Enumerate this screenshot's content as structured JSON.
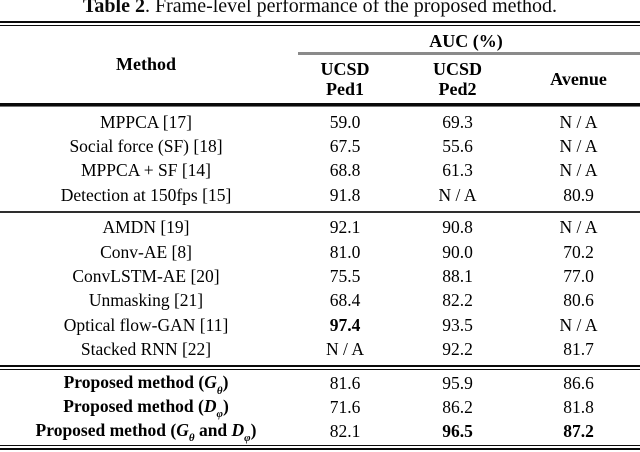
{
  "title": {
    "bold_part": "Table 2",
    "rest": ". Frame-level performance of the proposed method."
  },
  "table": {
    "method_header": "Method",
    "auc_header": "AUC (%)",
    "columns": [
      {
        "line1": "UCSD",
        "line2": "Ped1"
      },
      {
        "line1": "UCSD",
        "line2": "Ped2"
      },
      {
        "line1": "Avenue",
        "line2": ""
      }
    ],
    "groups": [
      {
        "rows": [
          {
            "bold": false,
            "method": [
              {
                "t": "MPPCA [17]"
              }
            ],
            "values": [
              "59.0",
              "69.3",
              "N / A"
            ],
            "bold_values": [
              false,
              false,
              false
            ]
          },
          {
            "bold": false,
            "method": [
              {
                "t": "Social force (SF) [18]"
              }
            ],
            "values": [
              "67.5",
              "55.6",
              "N / A"
            ],
            "bold_values": [
              false,
              false,
              false
            ]
          },
          {
            "bold": false,
            "method": [
              {
                "t": "MPPCA + SF [14]"
              }
            ],
            "values": [
              "68.8",
              "61.3",
              "N / A"
            ],
            "bold_values": [
              false,
              false,
              false
            ]
          },
          {
            "bold": false,
            "method": [
              {
                "t": "Detection at 150fps [15]"
              }
            ],
            "values": [
              "91.8",
              "N / A",
              "80.9"
            ],
            "bold_values": [
              false,
              false,
              false
            ]
          }
        ]
      },
      {
        "rows": [
          {
            "bold": false,
            "method": [
              {
                "t": "AMDN [19]"
              }
            ],
            "values": [
              "92.1",
              "90.8",
              "N / A"
            ],
            "bold_values": [
              false,
              false,
              false
            ]
          },
          {
            "bold": false,
            "method": [
              {
                "t": "Conv-AE [8]"
              }
            ],
            "values": [
              "81.0",
              "90.0",
              "70.2"
            ],
            "bold_values": [
              false,
              false,
              false
            ]
          },
          {
            "bold": false,
            "method": [
              {
                "t": "ConvLSTM-AE [20]"
              }
            ],
            "values": [
              "75.5",
              "88.1",
              "77.0"
            ],
            "bold_values": [
              false,
              false,
              false
            ]
          },
          {
            "bold": false,
            "method": [
              {
                "t": "Unmasking [21]"
              }
            ],
            "values": [
              "68.4",
              "82.2",
              "80.6"
            ],
            "bold_values": [
              false,
              false,
              false
            ]
          },
          {
            "bold": false,
            "method": [
              {
                "t": "Optical flow-GAN [11]"
              }
            ],
            "values": [
              "97.4",
              "93.5",
              "N / A"
            ],
            "bold_values": [
              true,
              false,
              false
            ]
          },
          {
            "bold": false,
            "method": [
              {
                "t": "Stacked RNN [22]"
              }
            ],
            "values": [
              "N / A",
              "92.2",
              "81.7"
            ],
            "bold_values": [
              false,
              false,
              false
            ]
          }
        ]
      },
      {
        "rows": [
          {
            "bold": true,
            "method": [
              {
                "t": "Proposed method ("
              },
              {
                "m": "G",
                "s": "θ"
              },
              {
                "t": ")"
              }
            ],
            "values": [
              "81.6",
              "95.9",
              "86.6"
            ],
            "bold_values": [
              false,
              false,
              false
            ]
          },
          {
            "bold": true,
            "method": [
              {
                "t": "Proposed method ("
              },
              {
                "m": "D",
                "s": "φ"
              },
              {
                "t": ")"
              }
            ],
            "values": [
              "71.6",
              "86.2",
              "81.8"
            ],
            "bold_values": [
              false,
              false,
              false
            ]
          },
          {
            "bold": true,
            "method": [
              {
                "t": "Proposed method ("
              },
              {
                "m": "G",
                "s": "θ"
              },
              {
                "t": " and "
              },
              {
                "m": "D",
                "s": "φ"
              },
              {
                "t": ")"
              }
            ],
            "values": [
              "82.1",
              "96.5",
              "87.2"
            ],
            "bold_values": [
              false,
              true,
              true
            ]
          }
        ]
      }
    ]
  },
  "colors": {
    "text": "#000000",
    "rule_black": "#0a0a0a",
    "rule_gray": "#8a8a8a",
    "section_rule": "#2e2e2e"
  }
}
